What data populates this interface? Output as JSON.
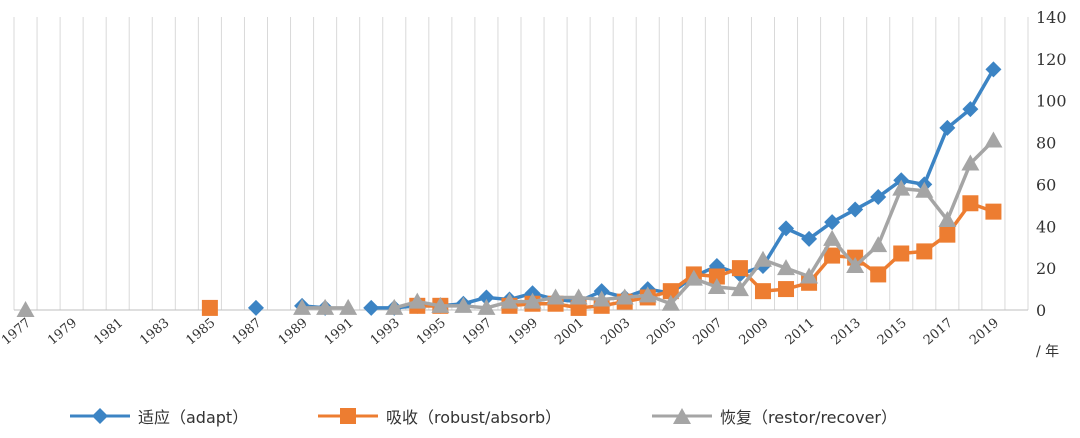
{
  "chart_data": {
    "type": "line",
    "x": [
      1977,
      1978,
      1979,
      1980,
      1981,
      1982,
      1983,
      1984,
      1985,
      1986,
      1987,
      1988,
      1989,
      1990,
      1991,
      1992,
      1993,
      1994,
      1995,
      1996,
      1997,
      1998,
      1999,
      2000,
      2001,
      2002,
      2003,
      2004,
      2005,
      2006,
      2007,
      2008,
      2009,
      2010,
      2011,
      2012,
      2013,
      2014,
      2015,
      2016,
      2017,
      2018,
      2019,
      2020
    ],
    "x_tick_labels": [
      "1977",
      "1979",
      "1981",
      "1983",
      "1985",
      "1987",
      "1989",
      "1991",
      "1993",
      "1995",
      "1997",
      "1999",
      "2001",
      "2003",
      "2005",
      "2007",
      "2009",
      "2011",
      "2013",
      "2015",
      "2017",
      "2019"
    ],
    "x_unit": "/ 年",
    "ylim": [
      0,
      140
    ],
    "y_ticks": [
      0,
      20,
      40,
      60,
      80,
      100,
      120,
      140
    ],
    "y_axis_position": "right",
    "grid": "vertical",
    "legend_position": "bottom",
    "series": [
      {
        "name": "适应（adapt）",
        "color": "#3c84c4",
        "marker": "diamond",
        "values": [
          null,
          null,
          null,
          null,
          null,
          null,
          null,
          null,
          null,
          null,
          1,
          null,
          2,
          1,
          null,
          1,
          1,
          2,
          2,
          3,
          6,
          5,
          8,
          5,
          4,
          9,
          6,
          10,
          8,
          16,
          21,
          17,
          21,
          39,
          34,
          42,
          48,
          54,
          62,
          60,
          87,
          96,
          115,
          null
        ]
      },
      {
        "name": "吸收（robust/absorb）",
        "color": "#ed7d31",
        "marker": "square",
        "values": [
          null,
          null,
          null,
          null,
          null,
          null,
          null,
          null,
          1,
          null,
          null,
          null,
          null,
          null,
          null,
          null,
          null,
          2,
          2,
          null,
          null,
          2,
          3,
          3,
          1,
          2,
          4,
          6,
          9,
          17,
          16,
          20,
          9,
          10,
          13,
          26,
          25,
          17,
          27,
          28,
          36,
          51,
          47,
          null
        ]
      },
      {
        "name": "恢复（restor/recover）",
        "color": "#a5a5a5",
        "marker": "triangle",
        "values": [
          0,
          null,
          null,
          null,
          null,
          null,
          null,
          null,
          null,
          null,
          null,
          null,
          1,
          1,
          1,
          null,
          1,
          4,
          2,
          2,
          1,
          4,
          4,
          6,
          6,
          5,
          6,
          7,
          3,
          15,
          11,
          10,
          24,
          20,
          16,
          34,
          21,
          31,
          58,
          57,
          43,
          70,
          81,
          null
        ]
      }
    ]
  }
}
